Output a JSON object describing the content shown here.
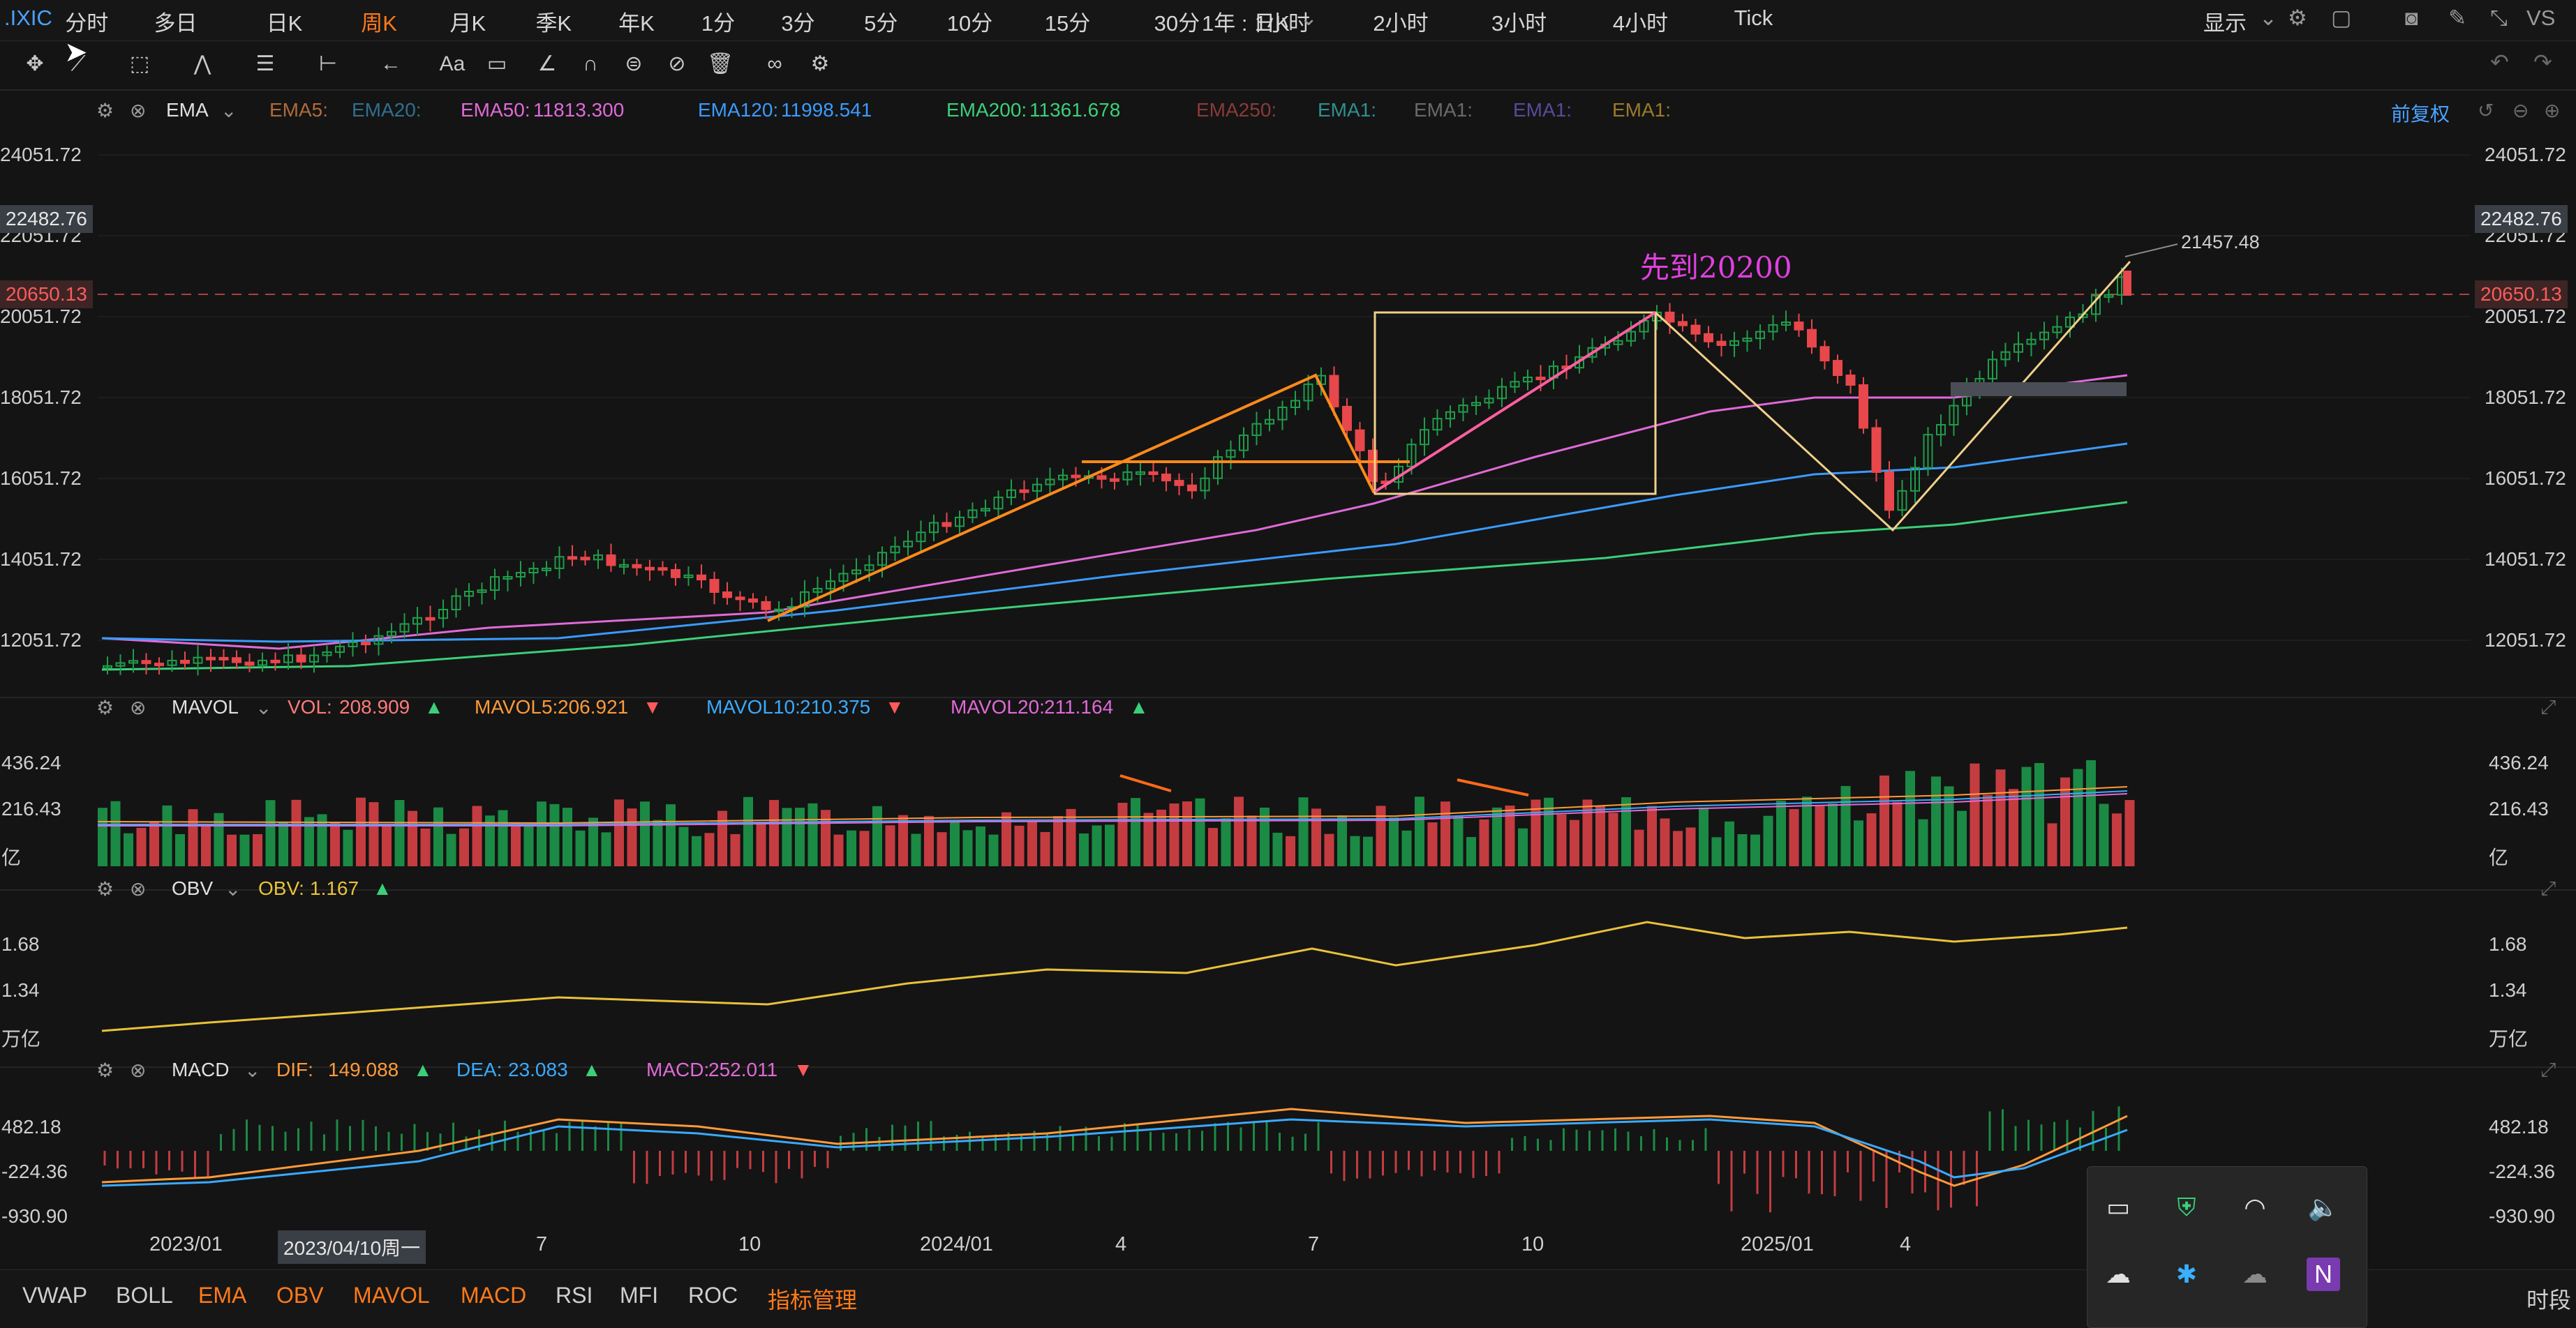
{
  "topbar": {
    "symbol": ".IXIC",
    "timeframes": [
      "分时",
      "多日",
      "日K",
      "周K",
      "月K",
      "季K",
      "年K",
      "1分",
      "3分",
      "5分",
      "10分",
      "15分",
      "30分",
      "1小时",
      "2小时",
      "3小时",
      "4小时",
      "Tick"
    ],
    "active_timeframe": "周K",
    "range_selector": "1年 : 日K",
    "display_label": "显示",
    "vs_label": "VS"
  },
  "ema": {
    "name": "EMA",
    "items": [
      {
        "label": "EMA5:",
        "value": "",
        "color": "#b06a3a"
      },
      {
        "label": "EMA20:",
        "value": "",
        "color": "#2f6f8f"
      },
      {
        "label": "EMA50:",
        "value": "11813.300",
        "color": "#e06ad8"
      },
      {
        "label": "EMA120:",
        "value": "11998.541",
        "color": "#3a9bff"
      },
      {
        "label": "EMA200:",
        "value": "11361.678",
        "color": "#3ccf7a"
      },
      {
        "label": "EMA250:",
        "value": "",
        "color": "#8a3a3a"
      },
      {
        "label": "EMA1:",
        "value": "",
        "color": "#2f8f8f"
      },
      {
        "label": "EMA1:",
        "value": "",
        "color": "#6a6a6a"
      },
      {
        "label": "EMA1:",
        "value": "",
        "color": "#5a4a9a"
      },
      {
        "label": "EMA1:",
        "value": "",
        "color": "#9a7a2a"
      }
    ],
    "adjust_label": "前复权"
  },
  "main_axis": {
    "ticks": [
      "24051.72",
      "22051.72",
      "20051.72",
      "18051.72",
      "16051.72",
      "14051.72",
      "12051.72"
    ],
    "cursor_price": "22482.76",
    "last_price": "20650.13",
    "high_label": "21457.48"
  },
  "annotation": {
    "text": "先到20200"
  },
  "mavol": {
    "name": "MAVOL",
    "items": [
      {
        "label": "VOL:",
        "value": "208.909",
        "color": "#ff7a7a",
        "arrow": "▲"
      },
      {
        "label": "MAVOL5:",
        "value": "206.921",
        "color": "#ff9a3a",
        "arrow": "▼"
      },
      {
        "label": "MAVOL10:",
        "value": "210.375",
        "color": "#3aaaff",
        "arrow": "▼"
      },
      {
        "label": "MAVOL20:",
        "value": "211.164",
        "color": "#e06ad8",
        "arrow": "▲"
      }
    ],
    "ticks": [
      "436.24",
      "216.43",
      "亿"
    ]
  },
  "obv": {
    "name": "OBV",
    "items": [
      {
        "label": "OBV:",
        "value": "1.167",
        "color": "#e8c23a",
        "arrow": "▲"
      }
    ],
    "ticks": [
      "1.68",
      "1.34",
      "万亿"
    ]
  },
  "macd": {
    "name": "MACD",
    "items": [
      {
        "label": "DIF:",
        "value": "149.088",
        "color": "#ff9a3a",
        "arrow": "▲"
      },
      {
        "label": "DEA:",
        "value": "23.083",
        "color": "#3aaaff",
        "arrow": "▲"
      },
      {
        "label": "MACD:",
        "value": "252.011",
        "color": "#e06ad8",
        "arrow": "▼"
      }
    ],
    "ticks": [
      "482.18",
      "-224.36",
      "-930.90"
    ]
  },
  "date_axis": {
    "labels": [
      "2023/01",
      "7",
      "10",
      "2024/01",
      "4",
      "7",
      "10",
      "2025/01",
      "4"
    ],
    "cursor_date": "2023/04/10周一"
  },
  "bottombar": {
    "items": [
      {
        "label": "VWAP",
        "active": false
      },
      {
        "label": "BOLL",
        "active": false
      },
      {
        "label": "EMA",
        "active": true
      },
      {
        "label": "OBV",
        "active": true
      },
      {
        "label": "MAVOL",
        "active": true
      },
      {
        "label": "MACD",
        "active": true
      },
      {
        "label": "RSI",
        "active": false
      },
      {
        "label": "MFI",
        "active": false
      },
      {
        "label": "ROC",
        "active": false
      },
      {
        "label": "指标管理",
        "active": true
      }
    ],
    "period_label": "时段"
  },
  "colors": {
    "up": "#1f9d4a",
    "down": "#e8474b",
    "accent": "#ff7a1a"
  }
}
